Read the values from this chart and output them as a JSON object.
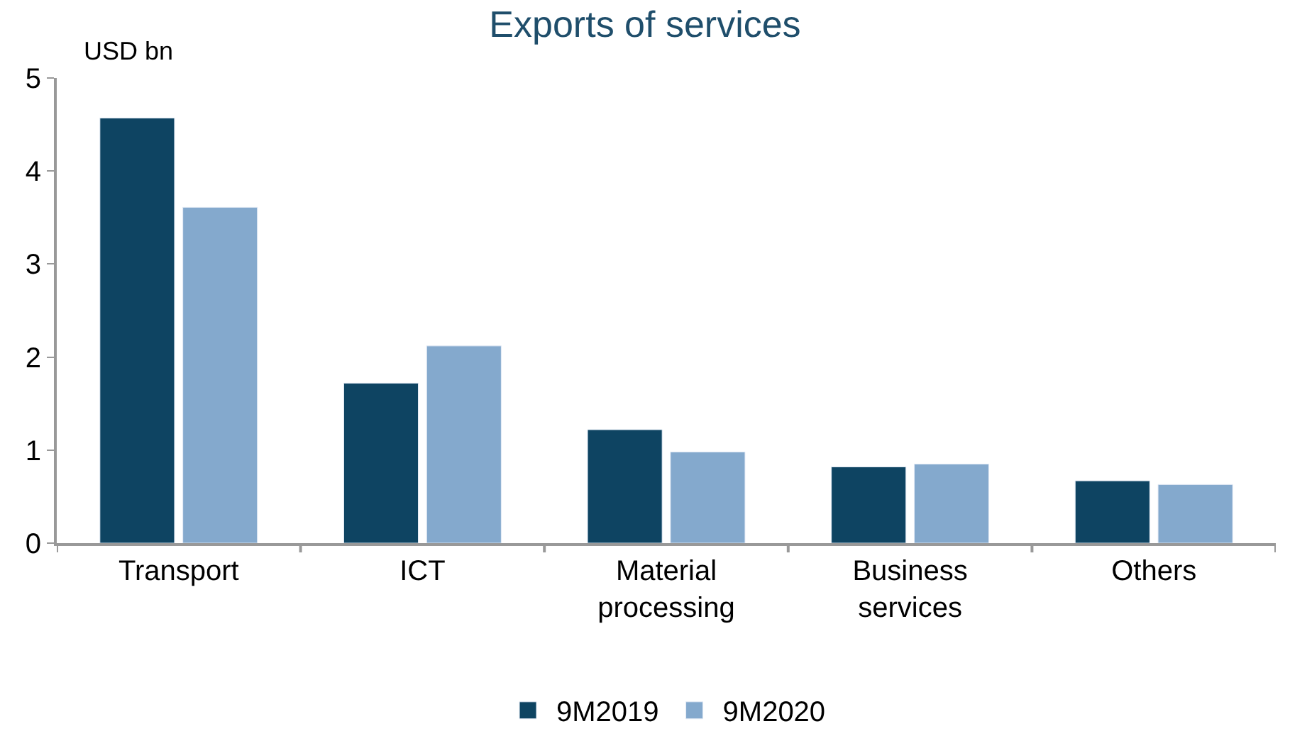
{
  "chart_data": {
    "type": "bar",
    "title": "Exports of services",
    "annotations": [
      "USD bn"
    ],
    "categories": [
      "Transport",
      "ICT",
      "Material processing",
      "Business services",
      "Others"
    ],
    "series": [
      {
        "name": "9M2019",
        "color": "#0e4462",
        "values": [
          4.57,
          1.72,
          1.22,
          0.82,
          0.67
        ]
      },
      {
        "name": "9M2020",
        "color": "#84a9cd",
        "values": [
          3.61,
          2.12,
          0.98,
          0.85,
          0.63
        ]
      }
    ],
    "ylim": [
      0,
      5
    ],
    "yticks": [
      0,
      1,
      2,
      3,
      4,
      5
    ],
    "legend": "bottom"
  }
}
